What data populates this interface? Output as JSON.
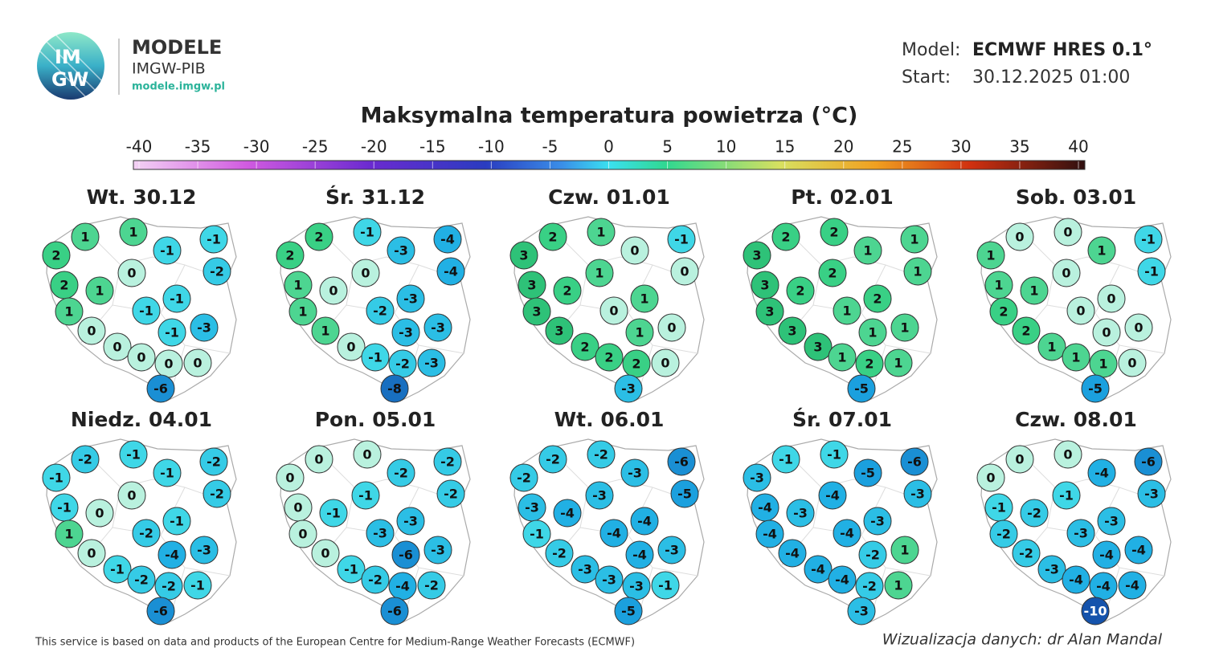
{
  "header": {
    "brand": "MODELE",
    "org": "IMGW-PIB",
    "url": "modele.imgw.pl",
    "logo": [
      "IM",
      "GW"
    ],
    "model_label": "Model:",
    "model": "ECMWF HRES 0.1°",
    "start_label": "Start:",
    "start": "30.12.2025 01:00"
  },
  "title": "Maksymalna temperatura powietrza (°C)",
  "colorbar": {
    "ticks": [
      -40,
      -35,
      -30,
      -25,
      -20,
      -15,
      -10,
      -5,
      0,
      5,
      10,
      15,
      20,
      25,
      30,
      35,
      40
    ]
  },
  "maps": [
    {
      "date": "Wt. 30.12",
      "values": [
        1,
        1,
        -1,
        -1,
        2,
        0,
        -2,
        2,
        1,
        -1,
        1,
        -1,
        -3,
        0,
        -1,
        0,
        0,
        0,
        0,
        -6
      ]
    },
    {
      "date": "Śr. 31.12",
      "values": [
        2,
        -1,
        -3,
        -4,
        2,
        0,
        -4,
        1,
        0,
        -3,
        1,
        -2,
        -3,
        1,
        -3,
        0,
        -1,
        -2,
        -3,
        -8
      ]
    },
    {
      "date": "Czw. 01.01",
      "values": [
        2,
        1,
        0,
        -1,
        3,
        1,
        0,
        3,
        2,
        1,
        3,
        0,
        0,
        3,
        1,
        2,
        2,
        2,
        0,
        -3
      ]
    },
    {
      "date": "Pt. 02.01",
      "values": [
        2,
        2,
        1,
        1,
        3,
        2,
        1,
        3,
        2,
        2,
        3,
        1,
        1,
        3,
        1,
        3,
        1,
        2,
        1,
        -5
      ]
    },
    {
      "date": "Sob. 03.01",
      "values": [
        0,
        0,
        1,
        -1,
        1,
        0,
        -1,
        1,
        1,
        0,
        2,
        0,
        0,
        2,
        0,
        1,
        1,
        1,
        0,
        -5
      ]
    },
    {
      "date": "Niedz. 04.01",
      "values": [
        -2,
        -1,
        -1,
        -2,
        -1,
        0,
        -2,
        -1,
        0,
        -1,
        1,
        -2,
        -3,
        0,
        -4,
        -1,
        -2,
        -2,
        -1,
        -6
      ]
    },
    {
      "date": "Pon. 05.01",
      "values": [
        0,
        0,
        -2,
        -2,
        0,
        -1,
        -2,
        0,
        -1,
        -3,
        0,
        -3,
        -3,
        0,
        -6,
        -1,
        -2,
        -4,
        -2,
        -6
      ]
    },
    {
      "date": "Wt. 06.01",
      "values": [
        -2,
        -2,
        -3,
        -6,
        -2,
        -3,
        -5,
        -3,
        -4,
        -4,
        -1,
        -4,
        -3,
        -2,
        -4,
        -3,
        -3,
        -3,
        -1,
        -5
      ]
    },
    {
      "date": "Śr. 07.01",
      "values": [
        -1,
        -1,
        -5,
        -6,
        -3,
        -4,
        -3,
        -4,
        -3,
        -3,
        -4,
        -4,
        1,
        -4,
        -2,
        -4,
        -4,
        -2,
        1,
        -3
      ]
    },
    {
      "date": "Czw. 08.01",
      "values": [
        0,
        0,
        -4,
        -6,
        0,
        -1,
        -3,
        -1,
        -2,
        -3,
        -2,
        -3,
        -4,
        -2,
        -4,
        -3,
        -4,
        -4,
        -4,
        -10
      ]
    }
  ],
  "footer": {
    "source": "This service is based on data and products of the European Centre for Medium-Range Weather Forecasts (ECMWF)",
    "credit": "Wizualizacja danych: dr Alan Mandal"
  }
}
